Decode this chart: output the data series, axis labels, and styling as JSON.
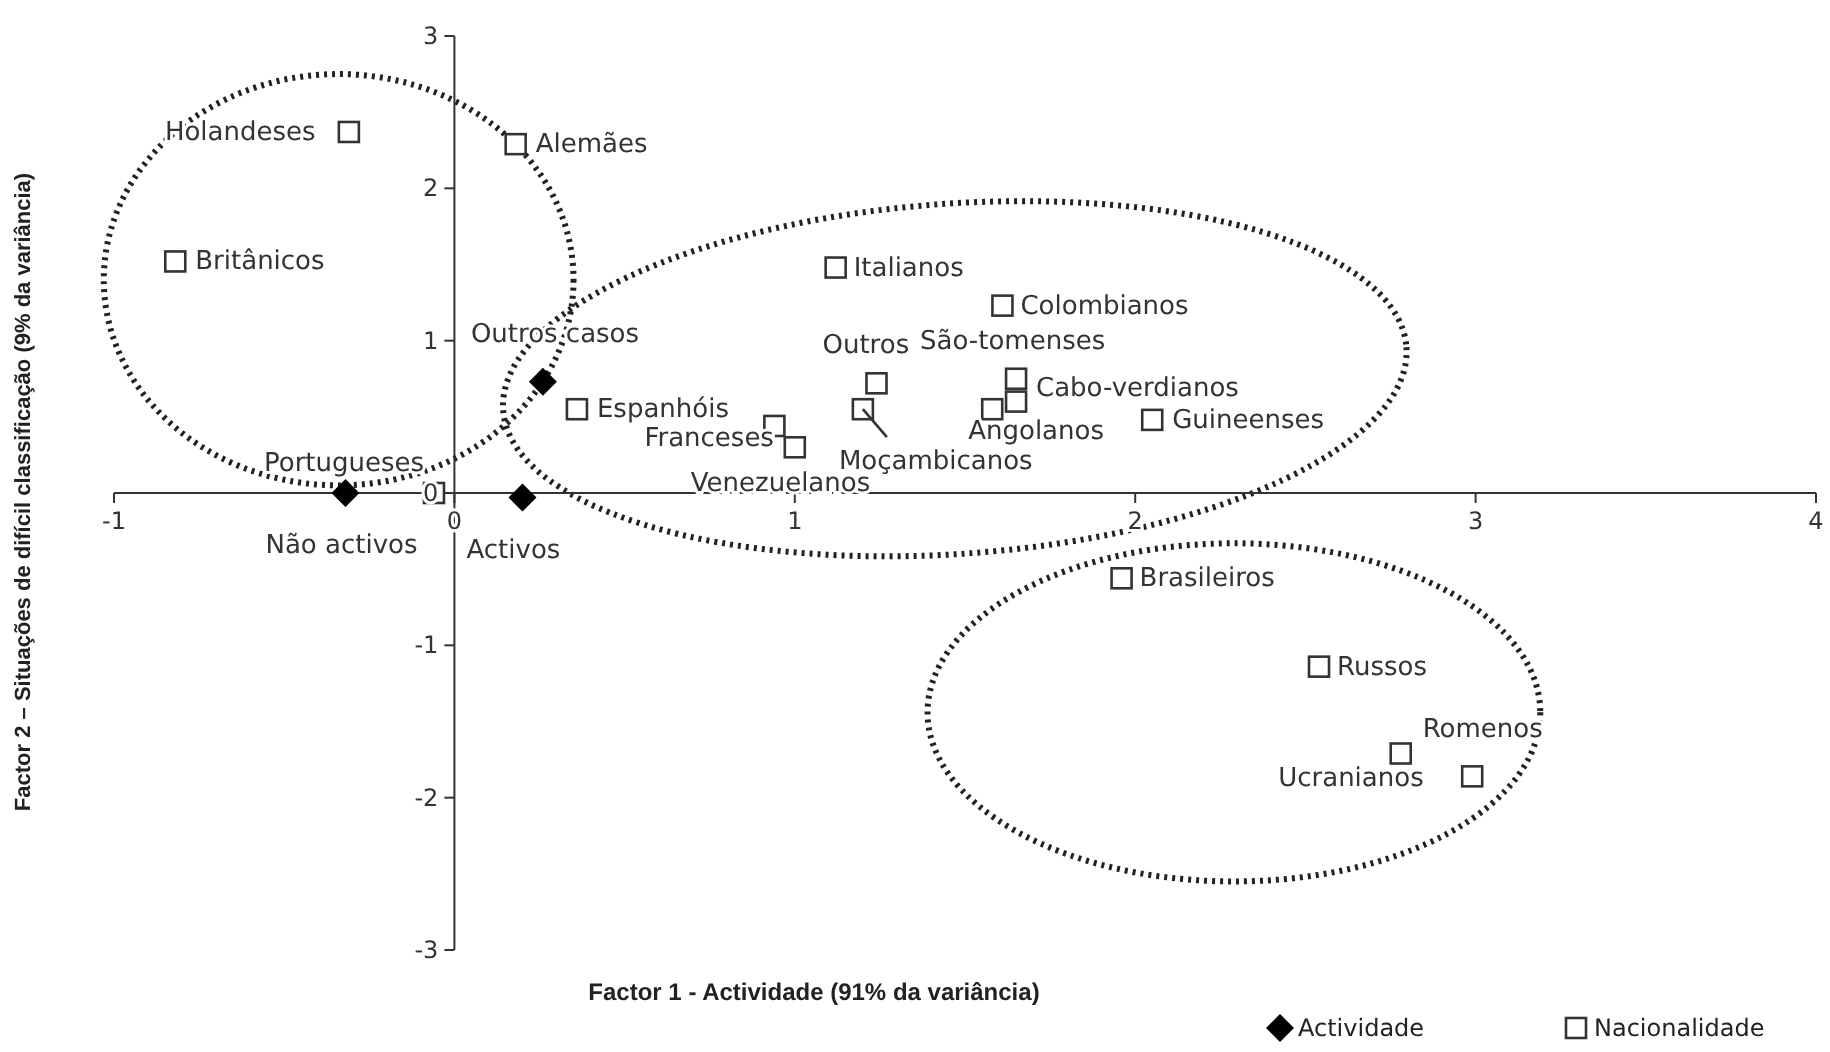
{
  "chart_data": {
    "type": "scatter",
    "xlabel": "Factor 1 - Actividade (91% da variância)",
    "ylabel": "Factor 2 – Situações de difícil classificação (9% da variância)",
    "xlim": [
      -1,
      4
    ],
    "xticks": [
      -1,
      0,
      1,
      2,
      3,
      4
    ],
    "ylim": [
      -3,
      3
    ],
    "yticks": [
      -3,
      -2,
      -1,
      0,
      1,
      2,
      3
    ],
    "grid": false,
    "legend": "bottom right",
    "series": [
      {
        "name": "Actividade",
        "color": "#000000",
        "marker": "diamond",
        "x": [
          -0.32,
          0.2,
          0.26
        ],
        "values": [
          0,
          -0.03,
          0.73
        ],
        "value_labels": [
          "Não activos",
          "Activos",
          "Outros casos"
        ]
      },
      {
        "name": "Nacionalidade",
        "color": "#333333",
        "marker": "square",
        "x": [
          -0.06,
          -0.31,
          -0.82,
          0.18,
          0.36,
          0.94,
          1.0,
          1.12,
          1.24,
          1.2,
          1.61,
          1.65,
          1.65,
          1.58,
          2.05,
          1.96,
          2.54,
          2.78,
          2.99
        ],
        "values": [
          0,
          2.37,
          1.52,
          2.29,
          0.55,
          0.44,
          0.3,
          1.48,
          0.72,
          0.55,
          1.23,
          0.75,
          0.6,
          0.55,
          0.48,
          -0.56,
          -1.14,
          -1.71,
          -1.86
        ],
        "value_labels": [
          "Portugueses",
          "Holandeses",
          "Britânicos",
          "Alemães",
          "Espanhóis",
          "Franceses",
          "Venezuelanos",
          "Italianos",
          "Outros",
          "Moçambicanos",
          "Colombianos",
          "São-tomenses",
          "Cabo-verdianos",
          "Angolanos",
          "Guineenses",
          "Brasileiros",
          "Russos",
          "Romenos",
          "Ucranianos"
        ]
      }
    ]
  }
}
